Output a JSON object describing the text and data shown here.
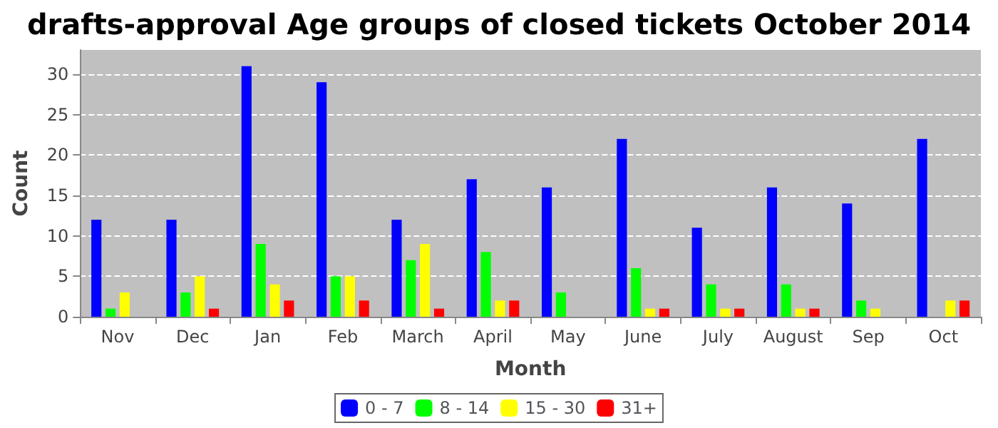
{
  "chart_data": {
    "type": "bar",
    "title": "drafts-approval Age groups of closed tickets October 2014",
    "xlabel": "Month",
    "ylabel": "Count",
    "categories": [
      "Nov",
      "Dec",
      "Jan",
      "Feb",
      "March",
      "April",
      "May",
      "June",
      "July",
      "August",
      "Sep",
      "Oct"
    ],
    "series": [
      {
        "name": "0 - 7",
        "color": "#0000ff",
        "values": [
          12,
          12,
          31,
          29,
          12,
          17,
          16,
          22,
          11,
          16,
          14,
          22
        ]
      },
      {
        "name": "8 - 14",
        "color": "#00ff00",
        "values": [
          1,
          3,
          9,
          5,
          7,
          8,
          3,
          6,
          4,
          4,
          2,
          0
        ]
      },
      {
        "name": "15 - 30",
        "color": "#ffff00",
        "values": [
          3,
          5,
          4,
          5,
          9,
          2,
          0,
          1,
          1,
          1,
          1,
          2
        ]
      },
      {
        "name": "31+",
        "color": "#ff0000",
        "values": [
          0,
          1,
          2,
          2,
          1,
          2,
          0,
          1,
          1,
          1,
          0,
          2
        ]
      }
    ],
    "ylim": [
      0,
      33
    ],
    "yticks": [
      0,
      5,
      10,
      15,
      20,
      25,
      30
    ],
    "grid": "y",
    "legend": "bottom"
  }
}
